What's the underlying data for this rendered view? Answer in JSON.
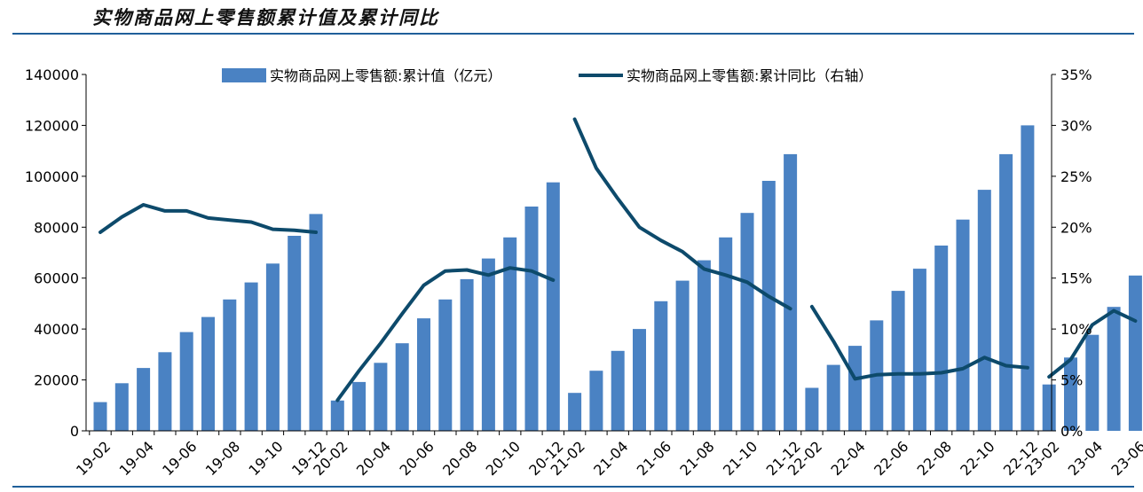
{
  "page": {
    "title": "实物商品网上零售额累计值及累计同比"
  },
  "colors": {
    "bar": "#4a82c3",
    "line": "#0d4a6b",
    "rule": "#1f5f9a",
    "axis": "#000000"
  },
  "chart_data": {
    "type": "bar",
    "title": "实物商品网上零售额累计值及累计同比",
    "categories": [
      "19-02",
      "19-03",
      "19-04",
      "19-05",
      "19-06",
      "19-07",
      "19-08",
      "19-09",
      "19-10",
      "19-11",
      "19-12",
      "20-02",
      "20-03",
      "20-04",
      "20-05",
      "20-06",
      "20-07",
      "20-08",
      "20-09",
      "20-10",
      "20-11",
      "20-12",
      "21-02",
      "21-03",
      "21-04",
      "21-05",
      "21-06",
      "21-07",
      "21-08",
      "21-09",
      "21-10",
      "21-11",
      "21-12",
      "22-02",
      "22-03",
      "22-04",
      "22-05",
      "22-06",
      "22-07",
      "22-08",
      "22-09",
      "22-10",
      "22-11",
      "22-12",
      "23-02",
      "23-03",
      "23-04",
      "23-05",
      "23-06"
    ],
    "x_tick_labels": [
      "19-02",
      "19-04",
      "19-06",
      "19-08",
      "19-10",
      "19-12",
      "20-02",
      "20-04",
      "20-06",
      "20-08",
      "20-10",
      "20-12",
      "21-02",
      "21-04",
      "21-06",
      "21-08",
      "21-10",
      "21-12",
      "22-02",
      "22-04",
      "22-06",
      "22-08",
      "22-10",
      "22-12",
      "23-02",
      "23-04",
      "23-06"
    ],
    "series": [
      {
        "name": "实物商品网上零售额:累计值（亿元）",
        "type": "bar",
        "axis": "left",
        "values": [
          11300,
          18700,
          24700,
          30900,
          38800,
          44700,
          51600,
          58300,
          65700,
          76600,
          85200,
          11900,
          19200,
          26700,
          34400,
          44200,
          51600,
          59600,
          67700,
          76000,
          88100,
          97600,
          14900,
          23600,
          31400,
          40000,
          50900,
          59000,
          67000,
          76000,
          85600,
          98200,
          108700,
          16900,
          25900,
          33400,
          43400,
          55000,
          63700,
          72800,
          83000,
          94700,
          108700,
          120000,
          18200,
          28800,
          37700,
          48700,
          61000
        ]
      },
      {
        "name": "实物商品网上零售额:累计同比（右轴）",
        "type": "line",
        "axis": "right",
        "values": [
          19.5,
          21.0,
          22.2,
          21.6,
          21.6,
          20.9,
          20.7,
          20.5,
          19.8,
          19.7,
          19.5,
          3.0,
          5.9,
          8.6,
          11.5,
          14.3,
          15.7,
          15.8,
          15.3,
          16.0,
          15.7,
          14.8,
          30.6,
          25.8,
          22.8,
          20.0,
          18.7,
          17.6,
          15.9,
          15.3,
          14.6,
          13.2,
          12.0,
          12.2,
          8.8,
          5.1,
          5.5,
          5.6,
          5.6,
          5.7,
          6.1,
          7.2,
          6.4,
          6.2,
          5.3,
          7.0,
          10.4,
          11.8,
          10.8
        ]
      }
    ],
    "y_left": {
      "min": 0,
      "max": 140000,
      "ticks": [
        "0",
        "20000",
        "40000",
        "60000",
        "80000",
        "100000",
        "120000",
        "140000"
      ]
    },
    "y_right": {
      "min": 0,
      "max": 35,
      "ticks": [
        "0%",
        "5%",
        "10%",
        "15%",
        "20%",
        "25%",
        "30%",
        "35%"
      ]
    },
    "legend": [
      {
        "label": "实物商品网上零售额:累计值（亿元）",
        "kind": "bar"
      },
      {
        "label": "实物商品网上零售额:累计同比（右轴）",
        "kind": "line"
      }
    ],
    "legend_position": "top-center",
    "grid": false
  }
}
